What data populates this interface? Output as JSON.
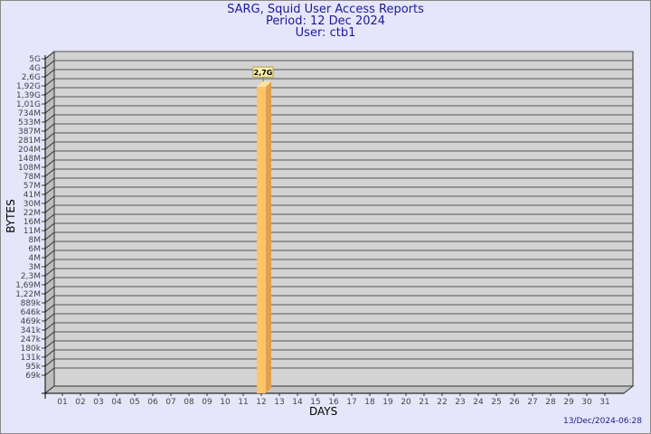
{
  "header": {
    "title": "SARG, Squid User Access Reports",
    "period": "Period: 12 Dec 2024",
    "user": "User: ctb1"
  },
  "timestamp": "13/Dec/2024-06:28",
  "colors": {
    "background": "#e6e6fa",
    "title": "#1a1a9a",
    "bar": "#ffc466",
    "plot": "#d3d3d3"
  },
  "chart_data": {
    "type": "bar",
    "title": "SARG, Squid User Access Reports",
    "xlabel": "DAYS",
    "ylabel": "BYTES",
    "yscale": "log",
    "grid": true,
    "categories": [
      "01",
      "02",
      "03",
      "04",
      "05",
      "06",
      "07",
      "08",
      "09",
      "10",
      "11",
      "12",
      "13",
      "14",
      "15",
      "16",
      "17",
      "18",
      "19",
      "20",
      "21",
      "22",
      "23",
      "24",
      "25",
      "26",
      "27",
      "28",
      "29",
      "30",
      "31"
    ],
    "y_ticks": [
      "5G",
      "4G",
      "2,6G",
      "1,92G",
      "1,39G",
      "1,01G",
      "734M",
      "533M",
      "387M",
      "281M",
      "204M",
      "148M",
      "108M",
      "78M",
      "57M",
      "41M",
      "30M",
      "22M",
      "16M",
      "11M",
      "8M",
      "6M",
      "4M",
      "3M",
      "2,3M",
      "1,69M",
      "1,22M",
      "889k",
      "646k",
      "469k",
      "341k",
      "247k",
      "180k",
      "131k",
      "95k",
      "69k"
    ],
    "series": [
      {
        "points": [
          {
            "x": "12",
            "y": "2,7G"
          }
        ]
      }
    ]
  }
}
